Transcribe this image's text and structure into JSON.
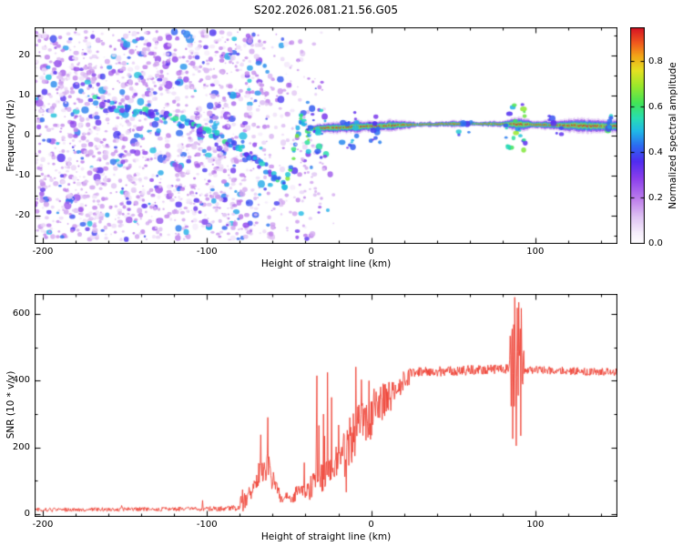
{
  "title": "S202.2026.081.21.56.G05",
  "seed": 20260321,
  "colors": {
    "background": "#ffffff",
    "axis": "#000000",
    "snr_line": "#ee3d30"
  },
  "chart_data": [
    {
      "type": "heatmap",
      "title": "S202.2026.081.21.56.G05",
      "xlabel": "Height of straight line (km)",
      "ylabel": "Frequency (Hz)",
      "xlim": [
        -205,
        150
      ],
      "ylim": [
        -27,
        27
      ],
      "grid": false,
      "xticks": {
        "values": [
          -200,
          -100,
          0,
          100
        ],
        "labels": [
          "-200",
          "-100",
          "0",
          "100"
        ],
        "minor": [
          -180,
          -160,
          -140,
          -120,
          -80,
          -60,
          -40,
          -20,
          20,
          40,
          60,
          80,
          120,
          140
        ]
      },
      "yticks": {
        "values": [
          -20,
          -10,
          0,
          10,
          20
        ],
        "labels": [
          "-20",
          "-10",
          "0",
          "10",
          "20"
        ],
        "minor": [
          -25,
          -15,
          -5,
          5,
          15,
          25
        ]
      },
      "colorbar": {
        "label": "Normalized spectral amplitude",
        "range": [
          0,
          0.95
        ],
        "ticks": {
          "values": [
            0.0,
            0.2,
            0.4,
            0.6,
            0.8
          ],
          "labels": [
            "0.0",
            "0.2",
            "0.4",
            "0.6",
            "0.8"
          ]
        },
        "colormap_stops": [
          [
            0.0,
            255,
            255,
            255
          ],
          [
            0.05,
            246,
            237,
            252
          ],
          [
            0.12,
            224,
            196,
            244
          ],
          [
            0.2,
            192,
            130,
            235
          ],
          [
            0.3,
            140,
            64,
            235
          ],
          [
            0.38,
            80,
            44,
            240
          ],
          [
            0.45,
            45,
            105,
            242
          ],
          [
            0.52,
            32,
            185,
            232
          ],
          [
            0.58,
            40,
            222,
            180
          ],
          [
            0.65,
            66,
            228,
            88
          ],
          [
            0.73,
            155,
            232,
            44
          ],
          [
            0.8,
            228,
            226,
            34
          ],
          [
            0.87,
            244,
            164,
            24
          ],
          [
            0.93,
            240,
            88,
            30
          ],
          [
            1.0,
            214,
            18,
            36
          ]
        ]
      },
      "noise": {
        "count": 2400,
        "xmax": -18,
        "fade_start": -92,
        "fade_end": -18
      },
      "descending_track": [
        [
          -168,
          8.5
        ],
        [
          -150,
          6.5
        ],
        [
          -135,
          5.5
        ],
        [
          -120,
          4.0
        ],
        [
          -108,
          2.5
        ],
        [
          -95,
          0.5
        ],
        [
          -85,
          -2.0
        ],
        [
          -75,
          -5.0
        ],
        [
          -65,
          -8.0
        ],
        [
          -58,
          -10.5
        ],
        [
          -52,
          -12.5
        ]
      ],
      "recovery_track": [
        [
          -52,
          -12.5
        ],
        [
          -49,
          -8.0
        ],
        [
          -47,
          -4.0
        ],
        [
          -45,
          0.0
        ],
        [
          -43.5,
          3.5
        ],
        [
          -42,
          5.5
        ],
        [
          -40.5,
          3.0
        ],
        [
          -39.5,
          0.5
        ],
        [
          -38.5,
          -1.5
        ],
        [
          -37.5,
          0.5
        ],
        [
          -36.5,
          2.0
        ]
      ],
      "faint_streaks": [
        {
          "from": [
            -47,
            -1
          ],
          "to": [
            -31,
            -16
          ],
          "amp": 0.14
        },
        {
          "from": [
            -41,
            5
          ],
          "to": [
            -29,
            -9
          ],
          "amp": 0.13
        }
      ],
      "main_track": {
        "x0": -38,
        "x1": 150,
        "base": 2.2,
        "tilt": 0.6,
        "wiggle": 0.45,
        "layers": [
          [
            0.13,
            1.05,
            0.5,
            0.85
          ],
          [
            0.3,
            0.78,
            0.7,
            0.9
          ],
          [
            0.48,
            0.58,
            0.85,
            0.95
          ],
          [
            0.6,
            0.42,
            0.9,
            0.95
          ],
          [
            0.72,
            0.3,
            0.95,
            0.9
          ],
          [
            0.97,
            0.13,
            1.0,
            0.85
          ]
        ]
      },
      "blob_clusters": [
        {
          "x": -33,
          "sx": 6,
          "fmin": -6,
          "fmax": 7,
          "count": 22,
          "a0": 0.3,
          "a1": 0.6
        },
        {
          "x": -13,
          "sx": 5,
          "fmin": -4,
          "fmax": 6,
          "count": 14,
          "a0": 0.3,
          "a1": 0.55
        },
        {
          "x": 2,
          "sx": 4,
          "fmin": -2,
          "fmax": 5,
          "count": 10,
          "a0": 0.3,
          "a1": 0.5
        },
        {
          "x": 57,
          "sx": 4,
          "fmin": 0,
          "fmax": 5,
          "count": 8,
          "a0": 0.35,
          "a1": 0.55
        },
        {
          "x": 88,
          "sx": 6,
          "fmin": -4,
          "fmax": 8,
          "count": 26,
          "a0": 0.35,
          "a1": 0.75
        },
        {
          "x": 112,
          "sx": 4,
          "fmin": 0,
          "fmax": 5,
          "count": 8,
          "a0": 0.3,
          "a1": 0.5
        },
        {
          "x": 147,
          "sx": 3,
          "fmin": 1,
          "fmax": 5,
          "count": 8,
          "a0": 0.4,
          "a1": 0.7
        }
      ]
    },
    {
      "type": "line",
      "xlabel": "Height of straight line (km)",
      "ylabel": "SNR (10 * v/v)",
      "xlim": [
        -205,
        150
      ],
      "ylim": [
        -8,
        660
      ],
      "grid": false,
      "line_color": "#ee3d30",
      "xticks": {
        "values": [
          -200,
          -100,
          0,
          100
        ],
        "labels": [
          "-200",
          "-100",
          "0",
          "100"
        ],
        "minor": [
          -180,
          -160,
          -140,
          -120,
          -80,
          -60,
          -40,
          -20,
          20,
          40,
          60,
          80,
          120,
          140
        ]
      },
      "yticks": {
        "values": [
          0,
          200,
          400,
          600
        ],
        "labels": [
          "0",
          "200",
          "400",
          "600"
        ],
        "minor": [
          100,
          300,
          500
        ]
      },
      "segments": [
        [
          -205,
          -100,
          13,
          16,
          6,
          0.002,
          25,
          0
        ],
        [
          -100,
          -80,
          15,
          19,
          8,
          0.004,
          35,
          0
        ],
        [
          -80,
          -70,
          22,
          95,
          28,
          0.05,
          70,
          10
        ],
        [
          -70,
          -62,
          105,
          150,
          40,
          0.08,
          110,
          30
        ],
        [
          -62,
          -56,
          125,
          62,
          30,
          0.05,
          50,
          20
        ],
        [
          -56,
          -46,
          46,
          52,
          16,
          0.02,
          35,
          10
        ],
        [
          -46,
          -38,
          58,
          85,
          28,
          0.08,
          110,
          20
        ],
        [
          -38,
          -28,
          85,
          115,
          45,
          0.1,
          260,
          30
        ],
        [
          -28,
          -18,
          115,
          165,
          60,
          0.12,
          250,
          50
        ],
        [
          -18,
          -8,
          170,
          240,
          85,
          0.12,
          200,
          70
        ],
        [
          -8,
          2,
          250,
          305,
          80,
          0.1,
          150,
          80
        ],
        [
          2,
          12,
          315,
          355,
          55,
          0.06,
          90,
          60
        ],
        [
          12,
          24,
          365,
          412,
          33,
          0.04,
          55,
          40
        ],
        [
          24,
          84,
          424,
          436,
          15,
          0.008,
          22,
          10
        ],
        [
          84,
          93,
          428,
          430,
          90,
          0.35,
          190,
          160
        ],
        [
          93,
          150.5,
          433,
          425,
          12,
          0.004,
          18,
          8
        ]
      ],
      "spike_events": [
        {
          "x": -63,
          "y": 290
        },
        {
          "x": -33,
          "y": 415
        },
        {
          "x": -29,
          "y": 300
        },
        {
          "x": -26.5,
          "y": 425
        },
        {
          "x": -24,
          "y": 350
        },
        {
          "x": 86,
          "y": 555
        },
        {
          "x": 87.5,
          "y": 650
        },
        {
          "x": 88.5,
          "y": 205
        },
        {
          "x": 90,
          "y": 635
        },
        {
          "x": 91,
          "y": 235
        }
      ]
    }
  ]
}
